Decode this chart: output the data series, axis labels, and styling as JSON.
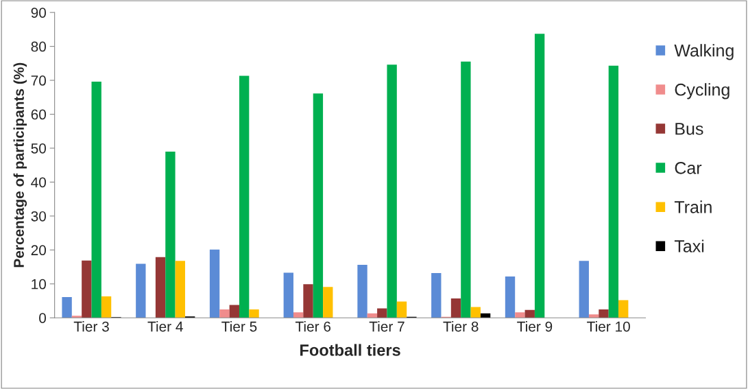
{
  "chart_data": {
    "type": "bar",
    "xlabel": "Football tiers",
    "ylabel": "Percentage of participants (%)",
    "categories": [
      "Tier 3",
      "Tier 4",
      "Tier 5",
      "Tier 6",
      "Tier 7",
      "Tier 8",
      "Tier 9",
      "Tier 10"
    ],
    "series": [
      {
        "name": "Walking",
        "color": "#5b8bd6",
        "values": [
          6.1,
          15.9,
          20.1,
          13.3,
          15.6,
          13.2,
          12.2,
          16.8
        ]
      },
      {
        "name": "Cycling",
        "color": "#f08c8c",
        "values": [
          0.6,
          0,
          2.5,
          1.6,
          1.3,
          0.3,
          1.6,
          1.0
        ]
      },
      {
        "name": "Bus",
        "color": "#953735",
        "values": [
          16.9,
          17.9,
          3.8,
          9.9,
          2.8,
          5.7,
          2.3,
          2.5
        ]
      },
      {
        "name": "Car",
        "color": "#00b050",
        "values": [
          69.6,
          49.0,
          71.3,
          66.1,
          74.6,
          75.5,
          83.7,
          74.3
        ]
      },
      {
        "name": "Train",
        "color": "#ffc000",
        "values": [
          6.3,
          16.8,
          2.5,
          9.1,
          4.8,
          3.2,
          0,
          5.2
        ]
      },
      {
        "name": "Taxi",
        "color": "#000000",
        "values": [
          0.2,
          0.4,
          0,
          0,
          0.3,
          1.3,
          0,
          0
        ]
      }
    ],
    "ylim": [
      0,
      90
    ],
    "yticks": [
      0,
      10,
      20,
      30,
      40,
      50,
      60,
      70,
      80,
      90
    ],
    "grid": false,
    "legend": "right"
  }
}
